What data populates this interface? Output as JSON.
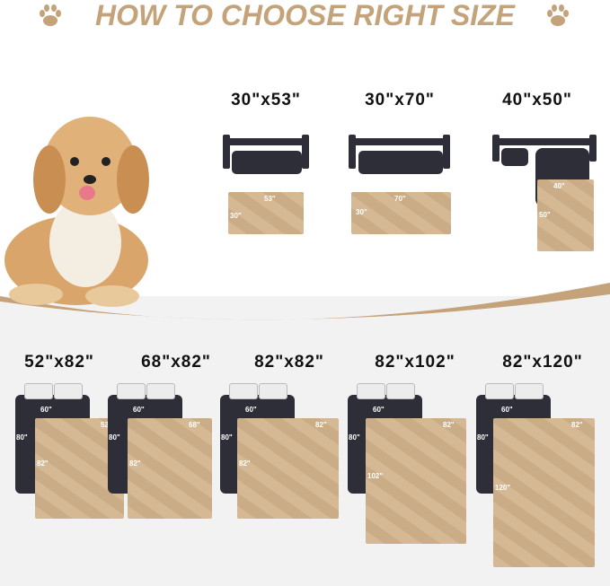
{
  "title": "HOW TO CHOOSE RIGHT SIZE",
  "icons": {
    "left": "paw-icon",
    "right": "paw-icon"
  },
  "colors": {
    "accent": "#c4a27a",
    "pad": "#d2b48c",
    "furniture": "#2e2e38"
  },
  "sofa_sizes": [
    {
      "label": "30\"x53\"",
      "width": "53\"",
      "length": "30\""
    },
    {
      "label": "30\"x70\"",
      "width": "70\"",
      "length": "30\""
    },
    {
      "label": "40\"x50\"",
      "width": "40\"",
      "length": "50\""
    }
  ],
  "bed_sizes": [
    {
      "label": "52\"x82\"",
      "bed_width": "60\"",
      "bed_length": "80\"",
      "width": "52\"",
      "length": "82\""
    },
    {
      "label": "68\"x82\"",
      "bed_width": "60\"",
      "bed_length": "80\"",
      "width": "68\"",
      "length": "82\""
    },
    {
      "label": "82\"x82\"",
      "bed_width": "60\"",
      "bed_length": "80\"",
      "width": "82\"",
      "length": "82\""
    },
    {
      "label": "82\"x102\"",
      "bed_width": "60\"",
      "bed_length": "80\"",
      "width": "82\"",
      "length": "102\""
    },
    {
      "label": "82\"x120\"",
      "bed_width": "60\"",
      "bed_length": "80\"",
      "width": "82\"",
      "length": "120\""
    }
  ]
}
